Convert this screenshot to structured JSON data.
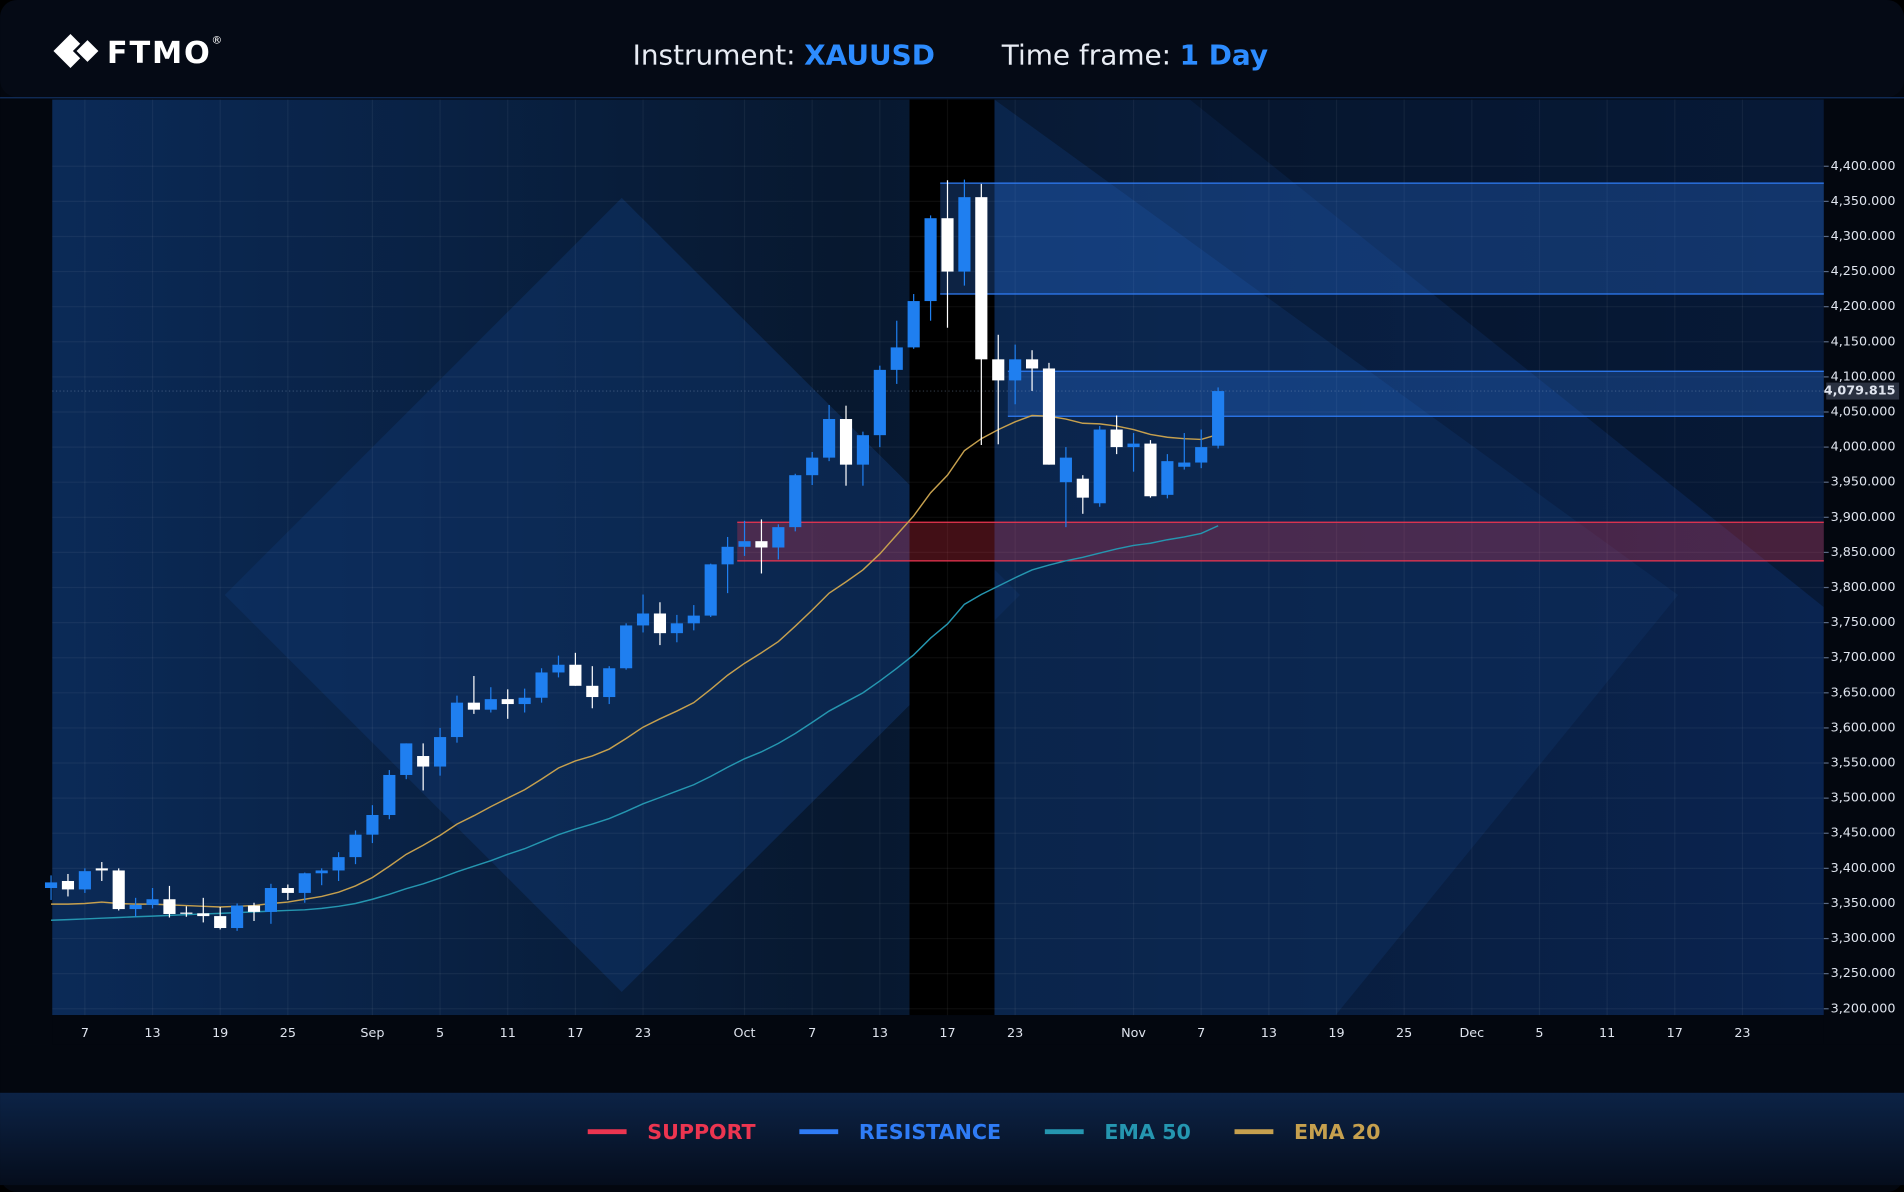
{
  "header": {
    "logo": "FTMO",
    "logo_mark": "®",
    "instrument_label": "Instrument:",
    "instrument": "XAUUSD",
    "timeframe_label": "Time frame:",
    "timeframe": "1 Day"
  },
  "chart_data": {
    "type": "candlestick",
    "categories": [
      null,
      null,
      "7",
      null,
      null,
      null,
      "13",
      null,
      null,
      null,
      "19",
      null,
      null,
      null,
      "25",
      null,
      null,
      null,
      null,
      "Sep",
      null,
      null,
      null,
      "5",
      null,
      null,
      null,
      "11",
      null,
      null,
      null,
      "17",
      null,
      null,
      null,
      "23",
      null,
      null,
      null,
      null,
      null,
      "Oct",
      null,
      null,
      null,
      "7",
      null,
      null,
      null,
      "13",
      null,
      null,
      null,
      "17",
      null,
      null,
      null,
      "23",
      null,
      null,
      null,
      null,
      null,
      null,
      "Nov",
      null,
      null,
      null,
      "7",
      null,
      null,
      null,
      "13",
      null,
      null,
      null,
      "19",
      null,
      null,
      null,
      "25",
      null,
      null,
      null,
      "Dec",
      null,
      null,
      null,
      "5",
      null,
      null,
      null,
      "11",
      null,
      null,
      null,
      "17",
      null,
      null,
      null,
      "23",
      null,
      null,
      null,
      null,
      null
    ],
    "candles": {
      "up_color": "#1f7ff0",
      "down_color": "#ffffff",
      "open": [
        3372,
        3382,
        3370,
        3400,
        3397,
        3342,
        3348,
        3356,
        3337,
        3336,
        3332,
        3315,
        3347,
        3338,
        3372,
        3365,
        3393,
        3397,
        3416,
        3448,
        3476,
        3533,
        3560,
        3545,
        3587,
        3636,
        3626,
        3641,
        3634,
        3643,
        3679,
        3690,
        3660,
        3644,
        3685,
        3746,
        3763,
        3735,
        3749,
        3760,
        3833,
        3858,
        3866,
        3857,
        3886,
        3960,
        3985,
        4040,
        3975,
        4017,
        4110,
        4142,
        4208,
        4326,
        4250,
        4356,
        4125,
        4095,
        4125,
        4112,
        3950,
        3955,
        3920,
        4025,
        4000,
        4005,
        3932,
        3972,
        3978,
        4002,
        null,
        null,
        null,
        null,
        null,
        null,
        null,
        null,
        null,
        null,
        null,
        null,
        null,
        null,
        null,
        null,
        null,
        null,
        null,
        null,
        null,
        null,
        null,
        null,
        null,
        null,
        null,
        null,
        null,
        null,
        null,
        null,
        null,
        null,
        null,
        null
      ],
      "high": [
        3390,
        3392,
        3400,
        3409,
        3400,
        3358,
        3372,
        3375,
        3346,
        3358,
        3345,
        3350,
        3351,
        3378,
        3377,
        3394,
        3400,
        3423,
        3454,
        3490,
        3540,
        3578,
        3578,
        3600,
        3646,
        3674,
        3658,
        3655,
        3656,
        3685,
        3703,
        3707,
        3688,
        3688,
        3749,
        3790,
        3779,
        3761,
        3775,
        3834,
        3872,
        3895,
        3897,
        3890,
        3962,
        3993,
        4060,
        4059,
        4022,
        4116,
        4180,
        4218,
        4330,
        4380,
        4381,
        4375,
        4160,
        4146,
        4138,
        4120,
        4000,
        3960,
        4030,
        4045,
        4020,
        4010,
        3990,
        4020,
        4025,
        4085,
        null,
        null,
        null,
        null,
        null,
        null,
        null,
        null,
        null,
        null,
        null,
        null,
        null,
        null,
        null,
        null,
        null,
        null,
        null,
        null,
        null,
        null,
        null,
        null,
        null,
        null,
        null,
        null,
        null,
        null,
        null,
        null,
        null,
        null,
        null,
        null
      ],
      "low": [
        3355,
        3360,
        3365,
        3382,
        3340,
        3331,
        3343,
        3330,
        3331,
        3323,
        3313,
        3311,
        3325,
        3321,
        3355,
        3351,
        3376,
        3382,
        3406,
        3436,
        3470,
        3527,
        3511,
        3532,
        3579,
        3620,
        3622,
        3613,
        3622,
        3636,
        3672,
        3660,
        3628,
        3634,
        3683,
        3736,
        3718,
        3722,
        3739,
        3758,
        3792,
        3845,
        3820,
        3840,
        3880,
        3946,
        3980,
        3945,
        3945,
        4000,
        4090,
        4140,
        4180,
        4170,
        4230,
        4003,
        4004,
        4061,
        4080,
        3975,
        3886,
        3905,
        3915,
        3990,
        3965,
        3928,
        3927,
        3968,
        3970,
        3998,
        null,
        null,
        null,
        null,
        null,
        null,
        null,
        null,
        null,
        null,
        null,
        null,
        null,
        null,
        null,
        null,
        null,
        null,
        null,
        null,
        null,
        null,
        null,
        null,
        null,
        null,
        null,
        null,
        null,
        null,
        null,
        null,
        null,
        null,
        null,
        null
      ],
      "close": [
        3380,
        3370,
        3396,
        3397,
        3342,
        3348,
        3356,
        3335,
        3336,
        3332,
        3315,
        3347,
        3338,
        3372,
        3365,
        3393,
        3397,
        3416,
        3448,
        3476,
        3533,
        3578,
        3545,
        3587,
        3636,
        3626,
        3641,
        3634,
        3643,
        3679,
        3690,
        3660,
        3644,
        3685,
        3746,
        3763,
        3735,
        3749,
        3760,
        3833,
        3858,
        3866,
        3857,
        3886,
        3960,
        3985,
        4040,
        3975,
        4017,
        4110,
        4142,
        4208,
        4326,
        4250,
        4356,
        4125,
        4095,
        4125,
        4112,
        3975,
        3985,
        3928,
        4025,
        4000,
        4005,
        3930,
        3980,
        3978,
        4000,
        4079.815,
        null,
        null,
        null,
        null,
        null,
        null,
        null,
        null,
        null,
        null,
        null,
        null,
        null,
        null,
        null,
        null,
        null,
        null,
        null,
        null,
        null,
        null,
        null,
        null,
        null,
        null,
        null,
        null,
        null,
        null,
        null,
        null,
        null,
        null,
        null,
        null
      ]
    },
    "last_price_label": "4,079.815",
    "series": [
      {
        "name": "EMA 50",
        "color": "#2596b0",
        "values": [
          3326,
          3327,
          3328,
          3329,
          3330,
          3331,
          3332,
          3333,
          3334,
          3335,
          3336,
          3337,
          3338,
          3339,
          3340,
          3341,
          3343,
          3346,
          3350,
          3356,
          3363,
          3371,
          3378,
          3386,
          3395,
          3403,
          3411,
          3420,
          3428,
          3438,
          3448,
          3456,
          3463,
          3471,
          3481,
          3492,
          3501,
          3510,
          3519,
          3531,
          3544,
          3556,
          3566,
          3578,
          3592,
          3608,
          3624,
          3637,
          3650,
          3667,
          3685,
          3704,
          3728,
          3748,
          3776,
          3790,
          3802,
          3814,
          3825,
          3832,
          3838,
          3843,
          3849,
          3855,
          3860,
          3863,
          3868,
          3872,
          3877,
          3888,
          null,
          null,
          null,
          null,
          null,
          null,
          null,
          null,
          null,
          null,
          null,
          null,
          null,
          null,
          null,
          null,
          null,
          null,
          null,
          null,
          null,
          null,
          null,
          null,
          null,
          null,
          null,
          null,
          null,
          null,
          null,
          null,
          null,
          null,
          null,
          null
        ]
      },
      {
        "name": "EMA 20",
        "color": "#c6a04e",
        "values": [
          3349,
          3349,
          3350,
          3352,
          3350,
          3349,
          3349,
          3348,
          3347,
          3346,
          3345,
          3346,
          3347,
          3350,
          3352,
          3356,
          3360,
          3366,
          3375,
          3387,
          3403,
          3420,
          3433,
          3447,
          3463,
          3475,
          3488,
          3500,
          3512,
          3527,
          3543,
          3553,
          3560,
          3570,
          3585,
          3601,
          3613,
          3624,
          3636,
          3655,
          3675,
          3692,
          3707,
          3723,
          3745,
          3768,
          3792,
          3808,
          3825,
          3848,
          3875,
          3902,
          3935,
          3960,
          3995,
          4012,
          4025,
          4036,
          4045,
          4044,
          4040,
          4034,
          4033,
          4030,
          4025,
          4018,
          4014,
          4012,
          4011,
          4018,
          null,
          null,
          null,
          null,
          null,
          null,
          null,
          null,
          null,
          null,
          null,
          null,
          null,
          null,
          null,
          null,
          null,
          null,
          null,
          null,
          null,
          null,
          null,
          null,
          null,
          null,
          null,
          null,
          null,
          null,
          null,
          null,
          null,
          null,
          null,
          null
        ]
      }
    ],
    "zones": [
      {
        "name": "SUPPORT",
        "color": "#ec3550",
        "ranges": [
          {
            "low": 3838,
            "high": 3893,
            "start": 41
          }
        ]
      },
      {
        "name": "RESISTANCE",
        "color": "#2f7cf6",
        "ranges": [
          {
            "low": 4218,
            "high": 4376,
            "start": 53
          },
          {
            "low": 4044,
            "high": 4108,
            "start": 57
          }
        ]
      }
    ],
    "ylim": [
      3191,
      4495
    ],
    "yticks": [
      {
        "value": 3200,
        "label": "3,200.000"
      },
      {
        "value": 3250,
        "label": "3,250.000"
      },
      {
        "value": 3300,
        "label": "3,300.000"
      },
      {
        "value": 3350,
        "label": "3,350.000"
      },
      {
        "value": 3400,
        "label": "3,400.000"
      },
      {
        "value": 3450,
        "label": "3,450.000"
      },
      {
        "value": 3500,
        "label": "3,500.000"
      },
      {
        "value": 3550,
        "label": "3,550.000"
      },
      {
        "value": 3600,
        "label": "3,600.000"
      },
      {
        "value": 3650,
        "label": "3,650.000"
      },
      {
        "value": 3700,
        "label": "3,700.000"
      },
      {
        "value": 3750,
        "label": "3,750.000"
      },
      {
        "value": 3800,
        "label": "3,800.000"
      },
      {
        "value": 3850,
        "label": "3,850.000"
      },
      {
        "value": 3900,
        "label": "3,900.000"
      },
      {
        "value": 3950,
        "label": "3,950.000"
      },
      {
        "value": 4000,
        "label": "4,000.000"
      },
      {
        "value": 4050,
        "label": "4,050.000"
      },
      {
        "value": 4100,
        "label": "4,100.000"
      },
      {
        "value": 4150,
        "label": "4,150.000"
      },
      {
        "value": 4200,
        "label": "4,200.000"
      },
      {
        "value": 4250,
        "label": "4,250.000"
      },
      {
        "value": 4300,
        "label": "4,300.000"
      },
      {
        "value": 4350,
        "label": "4,350.000"
      },
      {
        "value": 4400,
        "label": "4,400.000"
      }
    ],
    "grid": true
  }
}
